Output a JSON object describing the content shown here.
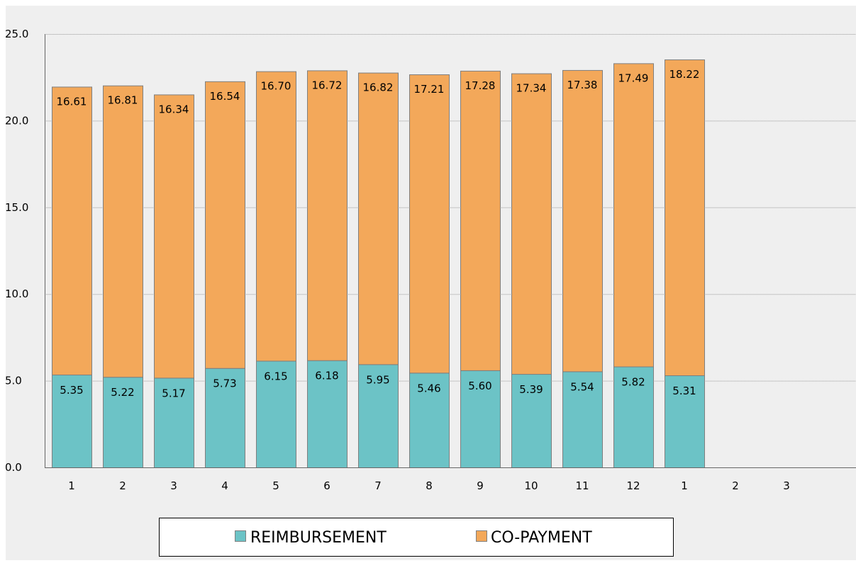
{
  "chart_data": {
    "type": "bar",
    "stacked": true,
    "title": "",
    "xlabel": "",
    "ylabel": "",
    "categories": [
      "1",
      "2",
      "3",
      "4",
      "5",
      "6",
      "7",
      "8",
      "9",
      "10",
      "11",
      "12",
      "1",
      "2",
      "3"
    ],
    "series": [
      {
        "name": "REIMBURSEMENT",
        "color": "#6cc3c6",
        "values": [
          5.35,
          5.22,
          5.17,
          5.73,
          6.15,
          6.18,
          5.95,
          5.46,
          5.6,
          5.39,
          5.54,
          5.82,
          5.31,
          null,
          null
        ],
        "labels": [
          "5.35",
          "5.22",
          "5.17",
          "5.73",
          "6.15",
          "6.18",
          "5.95",
          "5.46",
          "5.60",
          "5.39",
          "5.54",
          "5.82",
          "5.31",
          "",
          ""
        ]
      },
      {
        "name": "CO-PAYMENT",
        "color": "#f3a85a",
        "values": [
          16.61,
          16.81,
          16.34,
          16.54,
          16.7,
          16.72,
          16.82,
          17.21,
          17.28,
          17.34,
          17.38,
          17.49,
          18.22,
          null,
          null
        ],
        "labels": [
          "16.61",
          "16.81",
          "16.34",
          "16.54",
          "16.70",
          "16.72",
          "16.82",
          "17.21",
          "17.28",
          "17.34",
          "17.38",
          "17.49",
          "18.22",
          "",
          ""
        ]
      }
    ],
    "ylim": [
      0,
      25
    ],
    "yticks": [
      0,
      5,
      10,
      15,
      20,
      25
    ],
    "ytick_labels": [
      "0.0",
      "5.0",
      "10.0",
      "15.0",
      "20.0",
      "25.0"
    ],
    "grid": true,
    "legend_position": "bottom",
    "colors": {
      "plot_background": "#efefef",
      "gridline": "#9a9a9a",
      "bar_border": "#7f7f7f"
    }
  }
}
